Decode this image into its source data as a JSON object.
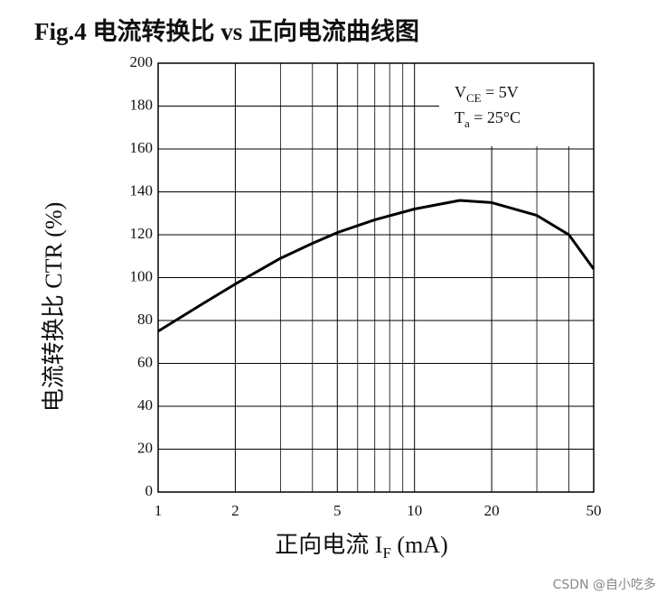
{
  "chart_data": {
    "type": "line",
    "title": "Fig.4 电流转换比 vs 正向电流曲线图",
    "y_label": "电流转换比 CTR (%)",
    "x_label": {
      "text": "正向电流 I",
      "sub": "F",
      "after": " (mA)"
    },
    "annotations": [
      {
        "text": "V",
        "sub": "CE",
        "after": " = 5V"
      },
      {
        "text": "T",
        "sub": "a",
        "after": " = 25°C"
      }
    ],
    "x": [
      1,
      1.5,
      2,
      3,
      4,
      5,
      7,
      10,
      15,
      20,
      30,
      40,
      50
    ],
    "series": [
      {
        "name": "CTR",
        "color": "#000000",
        "values": [
          75,
          88,
          97,
          109,
          116,
          121,
          127,
          132,
          136,
          135,
          129,
          120,
          104
        ]
      }
    ],
    "xscale": "log",
    "xlim": [
      1,
      50
    ],
    "xticks": [
      1,
      2,
      5,
      10,
      20,
      50
    ],
    "ylim": [
      0,
      200
    ],
    "yticks": [
      0,
      20,
      40,
      60,
      80,
      100,
      120,
      140,
      160,
      180,
      200
    ],
    "grid": true
  },
  "watermark": "CSDN @自小吃多"
}
